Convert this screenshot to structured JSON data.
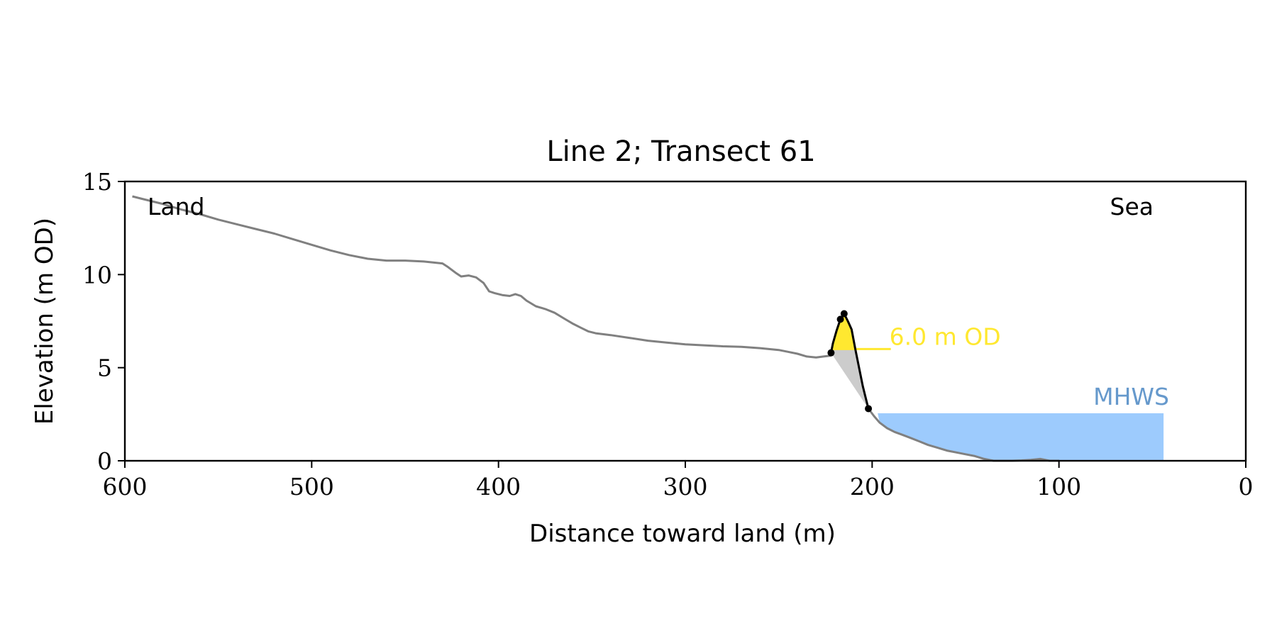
{
  "chart_data": {
    "type": "area",
    "title": "Line 2; Transect 61",
    "xlabel": "Distance toward land (m)",
    "ylabel": "Elevation (m OD)",
    "xlim": [
      600,
      0
    ],
    "ylim": [
      0,
      15
    ],
    "x_ticks": [
      "600",
      "500",
      "400",
      "300",
      "200",
      "100",
      "0"
    ],
    "x_tick_values": [
      600,
      500,
      400,
      300,
      200,
      100,
      0
    ],
    "y_ticks": [
      "0",
      "5",
      "10",
      "15"
    ],
    "y_tick_values": [
      0,
      5,
      10,
      15
    ],
    "grid": false,
    "annotations": {
      "land": "Land",
      "sea": "Sea",
      "level_label": "6.0 m OD",
      "mhws": "MHWS"
    },
    "colors": {
      "profile": "#808080",
      "dune": "#000000",
      "fill_above_level": "#ffe830",
      "fill_below_level": "#cccccc",
      "level_line": "#ffe830",
      "level_text": "#ffe830",
      "mhws_fill": "#9dcbfd",
      "mhws_text": "#6699cc"
    },
    "profile": {
      "x": [
        596,
        590,
        580,
        570,
        560,
        550,
        540,
        530,
        520,
        510,
        500,
        490,
        480,
        470,
        460,
        450,
        440,
        435,
        430,
        427,
        423,
        420,
        416,
        412,
        408,
        405,
        402,
        398,
        394,
        391,
        388,
        385,
        380,
        375,
        370,
        365,
        360,
        356,
        352,
        348,
        340,
        330,
        320,
        310,
        300,
        290,
        280,
        270,
        260,
        250,
        245,
        240,
        235,
        230,
        226,
        222
      ],
      "y": [
        14.2,
        14.05,
        13.8,
        13.5,
        13.25,
        12.95,
        12.7,
        12.45,
        12.2,
        11.9,
        11.6,
        11.3,
        11.05,
        10.85,
        10.75,
        10.75,
        10.7,
        10.65,
        10.6,
        10.4,
        10.1,
        9.9,
        9.95,
        9.85,
        9.55,
        9.1,
        9.0,
        8.9,
        8.85,
        8.95,
        8.85,
        8.6,
        8.3,
        8.15,
        7.95,
        7.65,
        7.35,
        7.15,
        6.95,
        6.85,
        6.75,
        6.6,
        6.45,
        6.35,
        6.25,
        6.2,
        6.15,
        6.12,
        6.05,
        5.95,
        5.85,
        5.75,
        5.6,
        5.55,
        5.6,
        5.65
      ]
    },
    "beach": {
      "x": [
        202,
        199,
        196,
        192,
        188,
        184,
        180,
        175,
        170,
        165,
        160,
        155,
        150,
        145,
        140,
        135,
        130,
        125,
        120,
        115,
        110,
        105,
        100
      ],
      "y": [
        2.8,
        2.4,
        2.05,
        1.75,
        1.55,
        1.4,
        1.25,
        1.05,
        0.85,
        0.7,
        0.55,
        0.45,
        0.35,
        0.25,
        0.1,
        0.0,
        0.0,
        0.0,
        0.02,
        0.05,
        0.1,
        0.0,
        0.0
      ]
    },
    "dune_outline": {
      "x": [
        222,
        221,
        219,
        217,
        216,
        215,
        213,
        211,
        209,
        207,
        205,
        203,
        202
      ],
      "y": [
        5.8,
        6.3,
        7.0,
        7.6,
        7.75,
        7.9,
        7.5,
        7.05,
        6.0,
        5.0,
        4.0,
        3.2,
        2.8
      ]
    },
    "dune_points": {
      "x": [
        222,
        217,
        215,
        202
      ],
      "y": [
        5.8,
        7.6,
        7.9,
        2.8
      ]
    },
    "level": {
      "value": 6.0,
      "x_start": 222,
      "x_end": 190
    },
    "mhws": {
      "level": 2.55,
      "x_start": 197,
      "x_end": 44
    }
  }
}
